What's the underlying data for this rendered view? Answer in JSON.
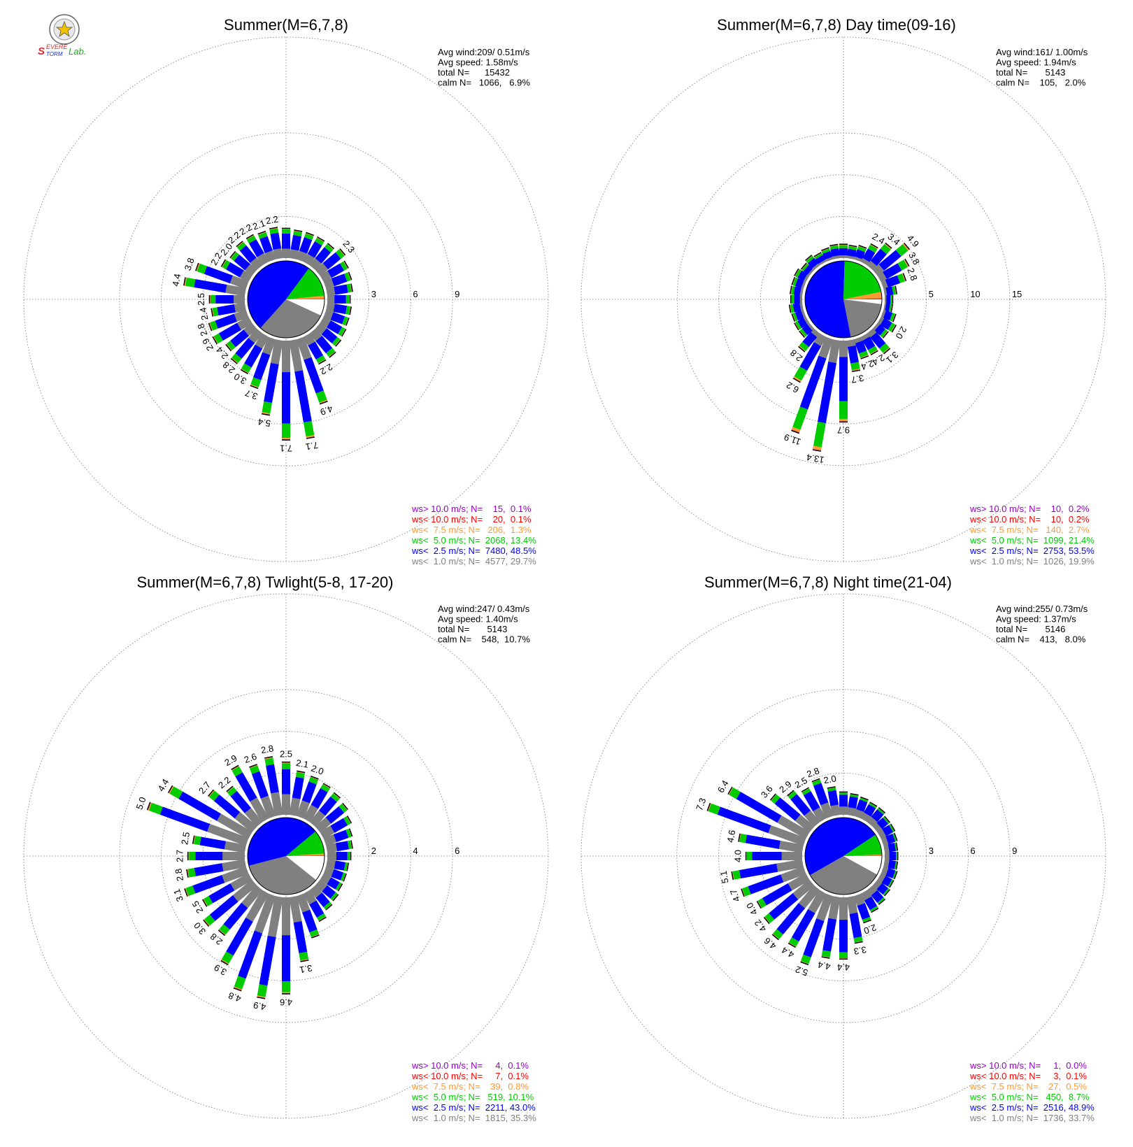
{
  "logo_text": "Severe Storm Lab.",
  "colors": {
    "gt10": "#9900cc",
    "lt10": "#ff0000",
    "lt7_5": "#ff9933",
    "lt5": "#00cc00",
    "lt2_5": "#0000ff",
    "lt1": "#808080",
    "calm": "#ffffff"
  },
  "chart_data": [
    {
      "type": "windrose",
      "title": "Summer(M=6,7,8)",
      "stats": [
        "Avg wind:209/ 0.51m/s",
        "Avg speed: 1.58m/s",
        "total N=      15432",
        "calm N=   1066,   6.9%"
      ],
      "rings": [
        3,
        6,
        9
      ],
      "ring_labels": [
        "3",
        "6",
        "9"
      ],
      "rmax": 10.6,
      "pie": [
        6.9,
        29.7,
        48.5,
        13.4,
        1.3,
        0.1,
        0.1
      ],
      "directions": 36,
      "totals": [
        2.1,
        2.0,
        2.0,
        2.0,
        2.0,
        2.3,
        2.0,
        1.9,
        1.8,
        1.6,
        1.7,
        1.7,
        1.8,
        1.9,
        2.2,
        2.2,
        4.9,
        7.1,
        7.1,
        5.4,
        3.7,
        3.0,
        2.8,
        2.4,
        2.9,
        2.8,
        2.4,
        2.5,
        4.4,
        3.8,
        2.2,
        2.0,
        2.2,
        2.2,
        2.1,
        2.2
      ],
      "labels": [
        "",
        "",
        "",
        "",
        "",
        "2.3",
        "",
        "",
        "",
        "",
        "",
        "",
        "",
        "",
        "",
        "2.2",
        "4.9",
        "7.1",
        "7.1",
        "5.4",
        "3.7",
        "3.0",
        "2.8",
        "2.4",
        "2.9",
        "2.8",
        "2.4",
        "2.5",
        "4.4",
        "3.8",
        "2.2",
        "2.0",
        "2.2",
        "2.2",
        "2.1",
        "2.2"
      ],
      "legend": [
        {
          "text": "ws> 10.0 m/s; N=    15,  0.1%",
          "key": "gt10"
        },
        {
          "text": "ws< 10.0 m/s; N=    20,  0.1%",
          "key": "lt10"
        },
        {
          "text": "ws<  7.5 m/s; N=   206,  1.3%",
          "key": "lt7_5"
        },
        {
          "text": "ws<  5.0 m/s; N=  2068, 13.4%",
          "key": "lt5"
        },
        {
          "text": "ws<  2.5 m/s; N=  7480, 48.5%",
          "key": "lt2_5"
        },
        {
          "text": "ws<  1.0 m/s; N=  4577, 29.7%",
          "key": "lt1"
        }
      ]
    },
    {
      "type": "windrose",
      "title": "Summer(M=6,7,8) Day time(09-16)",
      "stats": [
        "Avg wind:161/ 1.00m/s",
        "Avg speed: 1.94m/s",
        "total N=       5143",
        "calm N=    105,   2.0%"
      ],
      "rings": [
        5,
        10,
        15
      ],
      "ring_labels": [
        "5",
        "10",
        "15"
      ],
      "rmax": 17.7,
      "pie": [
        2.0,
        19.9,
        53.5,
        21.4,
        2.7,
        0.2,
        0.2
      ],
      "directions": 36,
      "totals": [
        1.6,
        1.5,
        1.7,
        2.4,
        3.4,
        4.9,
        3.8,
        2.8,
        1.4,
        0.9,
        0.9,
        1.5,
        2.0,
        1.6,
        3.1,
        2.4,
        2.4,
        3.7,
        9.7,
        13.4,
        11.9,
        6.2,
        2.8,
        1.5,
        1.5,
        1.4,
        1.5,
        1.3,
        1.4,
        1.4,
        1.5,
        1.2,
        1.5,
        1.2,
        1.4,
        1.6
      ],
      "labels": [
        "",
        "",
        "",
        "2.4",
        "3.4",
        "4.9",
        "3.8",
        "2.8",
        "",
        "",
        "",
        "",
        "2.0",
        "",
        "3.1",
        "2.4",
        "2.4",
        "3.7",
        "9.7",
        "13.4",
        "11.9",
        "6.2",
        "2.8",
        "",
        "",
        "",
        "",
        "",
        "",
        "",
        "",
        "",
        "",
        "",
        "",
        ""
      ],
      "legend": [
        {
          "text": "ws> 10.0 m/s; N=    10,  0.2%",
          "key": "gt10"
        },
        {
          "text": "ws< 10.0 m/s; N=    10,  0.2%",
          "key": "lt10"
        },
        {
          "text": "ws<  7.5 m/s; N=   140,  2.7%",
          "key": "lt7_5"
        },
        {
          "text": "ws<  5.0 m/s; N=  1099, 21.4%",
          "key": "lt5"
        },
        {
          "text": "ws<  2.5 m/s; N=  2753, 53.5%",
          "key": "lt2_5"
        },
        {
          "text": "ws<  1.0 m/s; N=  1026, 19.9%",
          "key": "lt1"
        }
      ]
    },
    {
      "type": "windrose",
      "title": "Summer(M=6,7,8) Twlight(5-8, 17-20)",
      "stats": [
        "Avg wind:247/ 0.43m/s",
        "Avg speed: 1.40m/s",
        "total N=       5143",
        "calm N=    548,  10.7%"
      ],
      "rings": [
        2,
        4,
        6
      ],
      "ring_labels": [
        "2",
        "4",
        "6"
      ],
      "rmax": 7.07,
      "pie": [
        10.7,
        35.3,
        43.0,
        10.1,
        0.8,
        0.1,
        0.1
      ],
      "directions": 36,
      "totals": [
        2.5,
        2.1,
        2.0,
        1.9,
        1.8,
        1.7,
        1.5,
        1.3,
        1.2,
        1.1,
        1.0,
        1.0,
        1.0,
        1.1,
        1.2,
        1.5,
        2.1,
        3.1,
        4.6,
        4.9,
        4.8,
        3.9,
        2.8,
        3.0,
        2.5,
        3.1,
        2.8,
        2.7,
        2.5,
        5.0,
        4.4,
        2.7,
        2.2,
        2.9,
        2.6,
        2.8
      ],
      "labels": [
        "2.5",
        "2.1",
        "2.0",
        "",
        "",
        "",
        "",
        "",
        "",
        "",
        "",
        "",
        "",
        "",
        "",
        "",
        "",
        "3.1",
        "4.6",
        "4.9",
        "4.8",
        "3.9",
        "2.8",
        "3.0",
        "2.5",
        "3.1",
        "2.8",
        "2.7",
        "2.5",
        "5.0",
        "4.4",
        "2.7",
        "2.2",
        "2.9",
        "2.6",
        "2.8"
      ],
      "legend": [
        {
          "text": "ws> 10.0 m/s; N=     4,  0.1%",
          "key": "gt10"
        },
        {
          "text": "ws< 10.0 m/s; N=     7,  0.1%",
          "key": "lt10"
        },
        {
          "text": "ws<  7.5 m/s; N=    39,  0.8%",
          "key": "lt7_5"
        },
        {
          "text": "ws<  5.0 m/s; N=   519, 10.1%",
          "key": "lt5"
        },
        {
          "text": "ws<  2.5 m/s; N=  2211, 43.0%",
          "key": "lt2_5"
        },
        {
          "text": "ws<  1.0 m/s; N=  1815, 35.3%",
          "key": "lt1"
        }
      ]
    },
    {
      "type": "windrose",
      "title": "Summer(M=6,7,8) Night time(21-04)",
      "stats": [
        "Avg wind:255/ 0.73m/s",
        "Avg speed: 1.37m/s",
        "total N=       5146",
        "calm N=    413,   8.0%"
      ],
      "rings": [
        3,
        6,
        9
      ],
      "ring_labels": [
        "3",
        "6",
        "9"
      ],
      "rmax": 10.6,
      "pie": [
        8.0,
        33.7,
        48.9,
        8.7,
        0.5,
        0.0,
        0.1
      ],
      "directions": 36,
      "totals": [
        1.6,
        1.5,
        1.4,
        1.3,
        1.3,
        1.1,
        1.1,
        1.0,
        0.9,
        0.9,
        0.9,
        1.0,
        1.0,
        1.1,
        1.3,
        1.5,
        2.0,
        3.3,
        4.4,
        4.4,
        5.2,
        4.4,
        4.6,
        4.2,
        4.0,
        4.7,
        5.1,
        4.0,
        4.6,
        7.3,
        6.4,
        3.6,
        2.9,
        2.5,
        2.8,
        2.0
      ],
      "labels": [
        "",
        "",
        "",
        "",
        "",
        "",
        "",
        "",
        "",
        "",
        "",
        "",
        "",
        "",
        "",
        "",
        "2.0",
        "3.3",
        "4.4",
        "4.4",
        "5.2",
        "4.4",
        "4.6",
        "4.2",
        "4.0",
        "4.7",
        "5.1",
        "4.0",
        "4.6",
        "7.3",
        "6.4",
        "3.6",
        "2.9",
        "2.5",
        "2.8",
        "2.0"
      ],
      "legend": [
        {
          "text": "ws> 10.0 m/s; N=     1,  0.0%",
          "key": "gt10"
        },
        {
          "text": "ws< 10.0 m/s; N=     3,  0.1%",
          "key": "lt10"
        },
        {
          "text": "ws<  7.5 m/s; N=    27,  0.5%",
          "key": "lt7_5"
        },
        {
          "text": "ws<  5.0 m/s; N=   450,  8.7%",
          "key": "lt5"
        },
        {
          "text": "ws<  2.5 m/s; N=  2516, 48.9%",
          "key": "lt2_5"
        },
        {
          "text": "ws<  1.0 m/s; N=  1736, 33.7%",
          "key": "lt1"
        }
      ]
    }
  ]
}
